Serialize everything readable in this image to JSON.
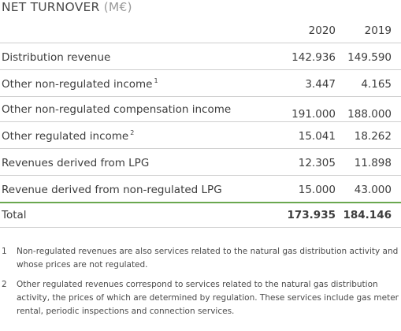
{
  "title": {
    "main": "NET TURNOVER",
    "unit": "(M€)"
  },
  "columns": [
    "2020",
    "2019"
  ],
  "rows": [
    {
      "label": "Distribution revenue",
      "sup": "",
      "v2020": "142.936",
      "v2019": "149.590"
    },
    {
      "label": "Other non-regulated income",
      "sup": "1",
      "v2020": "3.447",
      "v2019": "4.165"
    },
    {
      "label": "Other non-regulated compensation income",
      "sup": "",
      "v2020": "191.000",
      "v2019": "188.000"
    },
    {
      "label": "Other regulated income",
      "sup": "2",
      "v2020": "15.041",
      "v2019": "18.262"
    },
    {
      "label": "Revenues derived from LPG",
      "sup": "",
      "v2020": "12.305",
      "v2019": "11.898"
    },
    {
      "label": "Revenue derived from non-regulated LPG",
      "sup": "",
      "v2020": "15.000",
      "v2019": "43.000"
    }
  ],
  "total": {
    "label": "Total",
    "v2020": "173.935",
    "v2019": "184.146"
  },
  "notes": [
    {
      "num": "1",
      "text": "Non-regulated revenues are also services related to the natural gas distribution activity and whose prices are not regulated."
    },
    {
      "num": "2",
      "text": "Other regulated revenues correspond to services related to the natural gas distribution activity, the prices of which are determined by regulation. These services include gas meter rental, periodic inspections and connection services."
    }
  ],
  "colors": {
    "rule": "#cfcfcf",
    "total_rule": "#6aa84f"
  }
}
